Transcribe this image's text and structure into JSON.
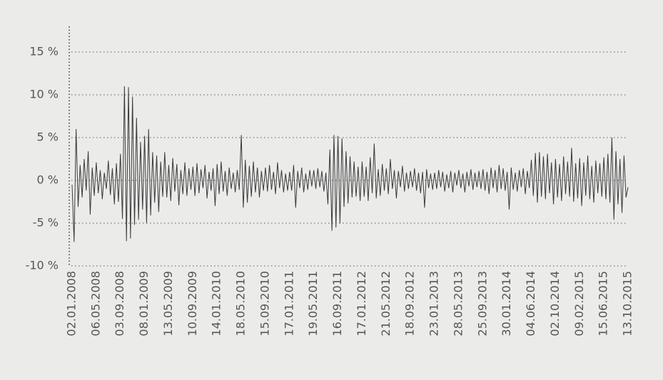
{
  "chart_data": {
    "type": "line",
    "color": "#3a3a3a",
    "grid": true,
    "ylim": [
      -10,
      18
    ],
    "yticks": [
      {
        "value": -10,
        "label": "-10 %"
      },
      {
        "value": -5,
        "label": "-5 %"
      },
      {
        "value": 0,
        "label": "0 %"
      },
      {
        "value": 5,
        "label": "5 %"
      },
      {
        "value": 10,
        "label": "10 %"
      },
      {
        "value": 15,
        "label": "15 %"
      }
    ],
    "categories": [
      "02.01.2008",
      null,
      null,
      null,
      null,
      null,
      null,
      null,
      null,
      null,
      null,
      null,
      "06.05.2008",
      null,
      null,
      null,
      null,
      null,
      null,
      null,
      null,
      null,
      null,
      null,
      "03.09.2008",
      null,
      null,
      null,
      null,
      null,
      null,
      null,
      null,
      null,
      null,
      null,
      "08.01.2009",
      null,
      null,
      null,
      null,
      null,
      null,
      null,
      null,
      null,
      null,
      null,
      "13.05.2009",
      null,
      null,
      null,
      null,
      null,
      null,
      null,
      null,
      null,
      null,
      null,
      "10.09.2009",
      null,
      null,
      null,
      null,
      null,
      null,
      null,
      null,
      null,
      null,
      null,
      "14.01.2010",
      null,
      null,
      null,
      null,
      null,
      null,
      null,
      null,
      null,
      null,
      null,
      "18.05.2010",
      null,
      null,
      null,
      null,
      null,
      null,
      null,
      null,
      null,
      null,
      null,
      "15.09.2010",
      null,
      null,
      null,
      null,
      null,
      null,
      null,
      null,
      null,
      null,
      null,
      "17.01.2011",
      null,
      null,
      null,
      null,
      null,
      null,
      null,
      null,
      null,
      null,
      null,
      "19.05.2011",
      null,
      null,
      null,
      null,
      null,
      null,
      null,
      null,
      null,
      null,
      null,
      "16.09.2011",
      null,
      null,
      null,
      null,
      null,
      null,
      null,
      null,
      null,
      null,
      null,
      "17.01.2012",
      null,
      null,
      null,
      null,
      null,
      null,
      null,
      null,
      null,
      null,
      null,
      "21.05.2012",
      null,
      null,
      null,
      null,
      null,
      null,
      null,
      null,
      null,
      null,
      null,
      "18.09.2012",
      null,
      null,
      null,
      null,
      null,
      null,
      null,
      null,
      null,
      null,
      null,
      "23.01.2013",
      null,
      null,
      null,
      null,
      null,
      null,
      null,
      null,
      null,
      null,
      null,
      "28.05.2013",
      null,
      null,
      null,
      null,
      null,
      null,
      null,
      null,
      null,
      null,
      null,
      "25.09.2013",
      null,
      null,
      null,
      null,
      null,
      null,
      null,
      null,
      null,
      null,
      null,
      "30.01.2014",
      null,
      null,
      null,
      null,
      null,
      null,
      null,
      null,
      null,
      null,
      null,
      "04.06.2014",
      null,
      null,
      null,
      null,
      null,
      null,
      null,
      null,
      null,
      null,
      null,
      "02.10.2014",
      null,
      null,
      null,
      null,
      null,
      null,
      null,
      null,
      null,
      null,
      null,
      "09.02.2015",
      null,
      null,
      null,
      null,
      null,
      null,
      null,
      null,
      null,
      null,
      null,
      "15.06.2015",
      null,
      null,
      null,
      null,
      null,
      null,
      null,
      null,
      null,
      null,
      null,
      "13.10.2015"
    ],
    "values": [
      -0.5,
      -7.2,
      6.0,
      -3.1,
      1.8,
      -2.0,
      2.5,
      -1.2,
      3.4,
      -4.0,
      1.5,
      -1.8,
      2.1,
      -1.5,
      1.2,
      -2.2,
      0.9,
      -1.0,
      2.3,
      -1.7,
      1.4,
      -2.8,
      2.0,
      -2.5,
      3.1,
      -4.5,
      11.0,
      -7.1,
      10.9,
      -6.8,
      9.8,
      -5.2,
      7.3,
      -4.6,
      4.5,
      -3.4,
      5.2,
      -5.0,
      6.0,
      -4.1,
      3.3,
      -2.6,
      2.9,
      -3.7,
      2.2,
      -1.9,
      3.3,
      -2.0,
      1.8,
      -2.4,
      2.6,
      -1.3,
      1.9,
      -2.9,
      1.2,
      -1.6,
      2.1,
      -1.8,
      1.4,
      -1.1,
      1.6,
      -1.8,
      2.0,
      -1.5,
      1.3,
      -0.9,
      1.8,
      -2.1,
      1.0,
      -1.2,
      1.4,
      -3.0,
      1.9,
      -1.6,
      2.2,
      -1.3,
      1.1,
      -1.8,
      1.5,
      -1.0,
      0.9,
      -1.4,
      1.2,
      -1.1,
      5.3,
      -3.2,
      2.4,
      -2.6,
      1.7,
      -1.9,
      2.2,
      -1.4,
      1.5,
      -2.0,
      1.1,
      -1.2,
      1.5,
      -1.3,
      1.8,
      -1.1,
      1.0,
      -1.6,
      2.1,
      -0.9,
      1.2,
      -1.4,
      0.8,
      -1.2,
      1.0,
      -1.2,
      1.8,
      -3.2,
      1.1,
      -0.9,
      1.5,
      -1.4,
      0.8,
      -1.1,
      1.2,
      -0.7,
      1.2,
      -1.0,
      1.4,
      -0.8,
      1.1,
      -1.3,
      0.9,
      -2.8,
      3.6,
      -5.9,
      5.3,
      -5.5,
      5.2,
      -5.0,
      4.9,
      -3.1,
      3.4,
      -2.7,
      2.8,
      -2.0,
      2.2,
      -1.9,
      1.6,
      -2.4,
      2.2,
      -1.9,
      1.6,
      -2.4,
      2.7,
      -1.5,
      4.3,
      -2.1,
      1.3,
      -1.8,
      1.9,
      -1.2,
      1.4,
      -1.6,
      2.5,
      -1.0,
      1.2,
      -2.1,
      1.1,
      -0.8,
      1.7,
      -1.3,
      0.9,
      -1.0,
      1.1,
      -0.8,
      1.4,
      -1.2,
      0.9,
      -1.5,
      1.0,
      -3.2,
      1.3,
      -0.9,
      0.8,
      -1.1,
      0.9,
      -1.0,
      1.2,
      -0.8,
      1.0,
      -1.3,
      0.7,
      -0.9,
      1.1,
      -1.4,
      0.9,
      -0.6,
      1.2,
      -0.9,
      0.8,
      -1.4,
      1.0,
      -0.7,
      1.3,
      -1.1,
      0.9,
      -0.8,
      1.1,
      -1.0,
      1.3,
      -1.2,
      1.0,
      -1.6,
      1.5,
      -0.9,
      1.2,
      -1.4,
      1.8,
      -1.0,
      1.4,
      -1.2,
      1.0,
      -3.4,
      1.5,
      -1.1,
      0.9,
      -1.3,
      1.2,
      -0.8,
      1.4,
      -1.6,
      1.1,
      -0.9,
      2.4,
      -1.8,
      3.2,
      -2.6,
      3.3,
      -1.9,
      2.8,
      -2.2,
      3.1,
      -1.5,
      2.1,
      -2.8,
      2.5,
      -2.0,
      1.9,
      -2.4,
      2.8,
      -1.6,
      2.2,
      -1.9,
      3.8,
      -2.5,
      2.0,
      -2.1,
      2.6,
      -3.0,
      2.1,
      -1.8,
      2.9,
      -2.2,
      1.7,
      -2.6,
      2.3,
      -1.5,
      2.0,
      -1.9,
      2.7,
      -2.2,
      3.1,
      -2.6,
      5.0,
      -4.6,
      3.4,
      -2.8,
      2.5,
      -3.8,
      2.9,
      -2.0,
      -0.8
    ]
  }
}
